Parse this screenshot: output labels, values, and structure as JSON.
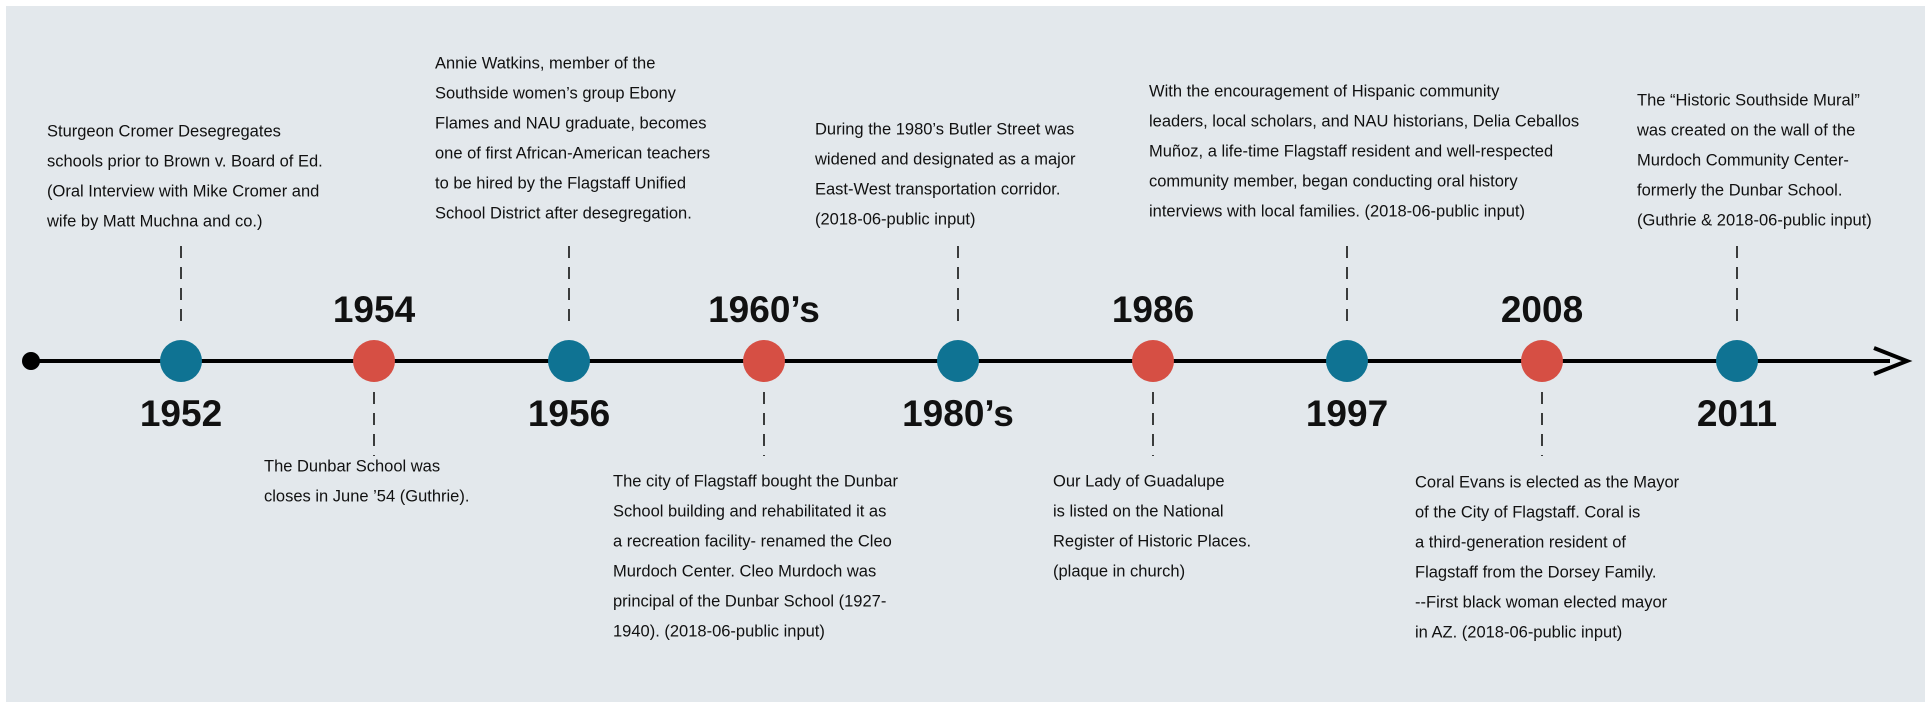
{
  "events": [
    {
      "year": "1952",
      "lines": [
        "Sturgeon Cromer Desegregates",
        "schools prior to Brown v. Board of Ed.",
        "(Oral Interview with Mike Cromer and",
        "wife by Matt Muchna and co.)"
      ]
    },
    {
      "year": "1954",
      "lines": [
        "The Dunbar School was",
        "closes in June ’54 (Guthrie)."
      ]
    },
    {
      "year": "1956",
      "lines": [
        "Annie Watkins, member of the",
        "Southside women’s group Ebony",
        "Flames and NAU graduate, becomes",
        "one of first African-American teachers",
        "to be hired by the Flagstaff Unified",
        "School District after desegregation."
      ]
    },
    {
      "year": "1960’s",
      "lines": [
        "The city of Flagstaff bought the Dunbar",
        "School building and rehabilitated it as",
        "a recreation facility- renamed the Cleo",
        "Murdoch Center. Cleo Murdoch was",
        "principal of the Dunbar School (1927-",
        "1940). (2018-06-public input)"
      ]
    },
    {
      "year": "1980’s",
      "lines": [
        "During the 1980’s Butler Street was",
        "widened and designated as a major",
        "East-West transportation corridor.",
        "(2018-06-public input)"
      ]
    },
    {
      "year": "1986",
      "lines": [
        "Our Lady of Guadalupe",
        "is listed on the National",
        "Register of Historic Places.",
        "(plaque in church)"
      ]
    },
    {
      "year": "1997",
      "lines": [
        "With the encouragement of Hispanic community",
        "leaders, local scholars, and NAU historians, Delia Ceballos",
        "Muñoz, a life-time Flagstaff resident and well-respected",
        "community member, began conducting oral history",
        "interviews with local families. (2018-06-public input)"
      ]
    },
    {
      "year": "2008",
      "lines": [
        "Coral Evans is elected as the Mayor",
        "of the City of Flagstaff. Coral is",
        "a third-generation resident of",
        "Flagstaff from the Dorsey Family.",
        "--First black woman elected mayor",
        "in AZ. (2018-06-public input)"
      ]
    },
    {
      "year": "2011",
      "lines": [
        "The “Historic Southside Mural”",
        "was created on the wall of the",
        "Murdoch Community Center-",
        "formerly the Dunbar School.",
        "(Guthrie & 2018-06-public input)"
      ]
    }
  ]
}
